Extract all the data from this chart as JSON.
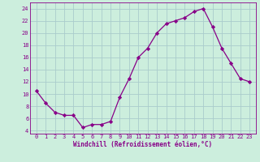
{
  "x": [
    0,
    1,
    2,
    3,
    4,
    5,
    6,
    7,
    8,
    9,
    10,
    11,
    12,
    13,
    14,
    15,
    16,
    17,
    18,
    19,
    20,
    21,
    22,
    23
  ],
  "y": [
    10.5,
    8.5,
    7.0,
    6.5,
    6.5,
    4.5,
    5.0,
    5.0,
    5.5,
    9.5,
    12.5,
    16.0,
    17.5,
    20.0,
    21.5,
    22.0,
    22.5,
    23.5,
    24.0,
    21.0,
    17.5,
    15.0,
    12.5,
    12.0
  ],
  "xlabel": "Windchill (Refroidissement éolien,°C)",
  "line_color": "#880088",
  "marker": "D",
  "marker_size": 2.2,
  "bg_color": "#cceedd",
  "grid_color": "#aacccc",
  "tick_color": "#880088",
  "label_color": "#880088",
  "ylim": [
    3.5,
    25.0
  ],
  "yticks": [
    4,
    6,
    8,
    10,
    12,
    14,
    16,
    18,
    20,
    22,
    24
  ],
  "xticks": [
    0,
    1,
    2,
    3,
    4,
    5,
    6,
    7,
    8,
    9,
    10,
    11,
    12,
    13,
    14,
    15,
    16,
    17,
    18,
    19,
    20,
    21,
    22,
    23
  ],
  "tick_fontsize": 5.0,
  "xlabel_fontsize": 5.5
}
